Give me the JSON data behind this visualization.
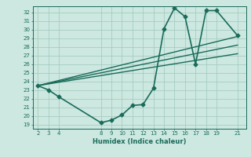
{
  "xlabel": "Humidex (Indice chaleur)",
  "ylabel": "",
  "bg_color": "#cce8e0",
  "grid_color": "#a0c8bc",
  "line_color": "#1a6b5a",
  "xlim": [
    1.5,
    21.8
  ],
  "ylim": [
    18.5,
    32.7
  ],
  "xticks": [
    2,
    3,
    4,
    8,
    9,
    10,
    11,
    12,
    13,
    14,
    15,
    16,
    17,
    18,
    19,
    21
  ],
  "yticks": [
    19,
    20,
    21,
    22,
    23,
    24,
    25,
    26,
    27,
    28,
    29,
    30,
    31,
    32
  ],
  "series": [
    {
      "x": [
        2,
        3,
        4,
        8,
        9,
        10,
        11,
        12,
        13,
        14,
        15,
        16,
        17,
        18,
        19,
        21
      ],
      "y": [
        23.5,
        23.0,
        22.2,
        19.2,
        19.5,
        20.1,
        21.2,
        21.3,
        23.2,
        30.1,
        32.5,
        31.5,
        26.0,
        32.2,
        32.2,
        29.3
      ],
      "marker": "D",
      "markersize": 2.5,
      "linewidth": 1.2,
      "zorder": 3
    },
    {
      "x": [
        2,
        21
      ],
      "y": [
        23.5,
        29.2
      ],
      "marker": null,
      "markersize": 0,
      "linewidth": 1.0,
      "zorder": 2
    },
    {
      "x": [
        2,
        21
      ],
      "y": [
        23.5,
        28.2
      ],
      "marker": null,
      "markersize": 0,
      "linewidth": 1.0,
      "zorder": 2
    },
    {
      "x": [
        2,
        21
      ],
      "y": [
        23.5,
        27.2
      ],
      "marker": null,
      "markersize": 0,
      "linewidth": 1.0,
      "zorder": 2
    }
  ]
}
